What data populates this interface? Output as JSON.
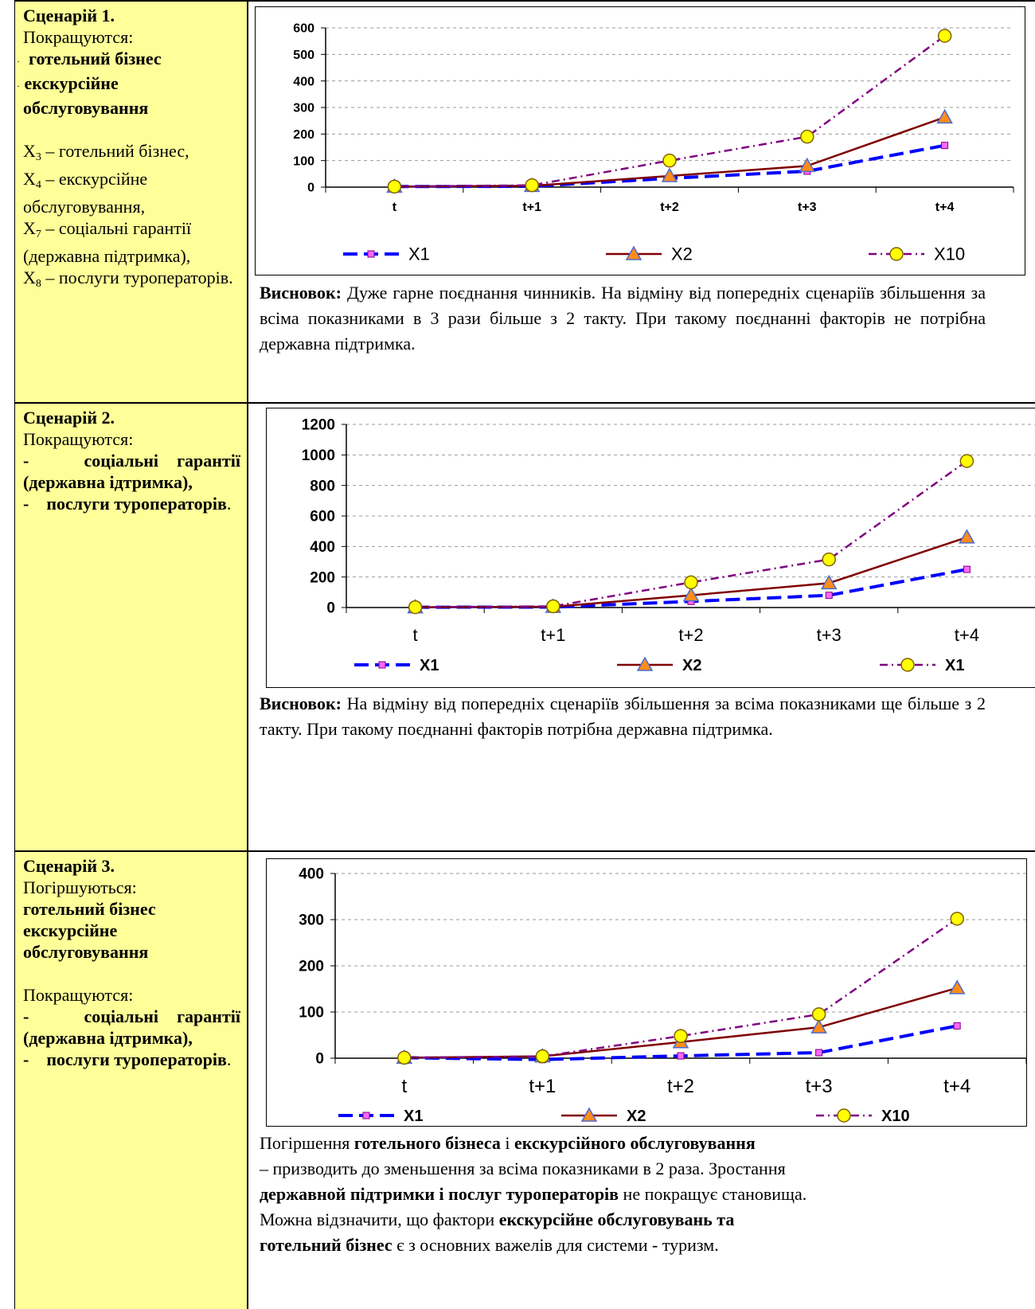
{
  "scenario1": {
    "title": "Сценарій 1.",
    "improve_label": "Покращуются:",
    "items": [
      "готельний бізнес",
      "екскурсійне обслуговування"
    ],
    "vars": [
      {
        "sym": "X",
        "sub": "3",
        "text": " – готельний бізнес,"
      },
      {
        "sym": "X",
        "sub": "4",
        "text": " – екскурсійне обслуговування,"
      },
      {
        "sym": "X",
        "sub": "7",
        "text": " – соціальні гарантії (державна підтримка),"
      },
      {
        "sym": "X",
        "sub": "8",
        "text": " – послуги туроператорів."
      }
    ],
    "conclusion_label": "Висновок:",
    "conclusion": " Дуже гарне поєднання чинників. На відміну від попередніх сценаріїв збільшення за всіма показниками в 3 рази більше з 2 такту. При такому поєднанні факторів не потрібна державна підтримка."
  },
  "scenario2": {
    "title": "Сценарій 2.",
    "improve_label": "Покращуются:",
    "item1": "соціальні гарантії (державна ідтримка),",
    "item2": "послуги туроператорів",
    "dash": "-",
    "period": ".",
    "conclusion_label": "Висновок:",
    "conclusion": " На відміну від попередніх сценаріїв збільшення за всіма показниками ще більше з 2 такту. При такому поєднанні факторів потрібна державна підтримка."
  },
  "scenario3": {
    "title": "Сценарій 3.",
    "worsen_label": "Погіршуються:",
    "worsen_items": [
      "готельний бізнес",
      "екскурсійне обслуговування"
    ],
    "improve_label": "Покращуются:",
    "item1": "соціальні гарантії (державна ідтримка),",
    "item2": "послуги туроператорів",
    "dash": "-",
    "period": ".",
    "text": {
      "p1a": "Погіршення ",
      "p1b": "готельного бізнеса",
      "p1c": " і ",
      "p1d": "екскурсійного обслуговування",
      "p2": " – призводить до зменьшення за всіма показниками в 2 раза. Зростання",
      "p3a": "державной підтримки і  послуг туроператорів",
      "p3b": " не покращує становища.",
      "p4a": "Можна відзначити, що фактори ",
      "p4b": "екскурсійне обслуговувань та",
      "p5a": "готельний бізнес",
      "p5b": "  є з основних важелів для системи - туризм."
    }
  },
  "chart_data": [
    {
      "type": "line",
      "categories": [
        "t",
        "t+1",
        "t+2",
        "t+3",
        "t+4"
      ],
      "ylim": [
        0,
        600
      ],
      "yticks": [
        0,
        100,
        200,
        300,
        400,
        500,
        600
      ],
      "grid": true,
      "legend": "bottom",
      "series": [
        {
          "name": "X1",
          "values": [
            2,
            3,
            33,
            60,
            157
          ],
          "color": "#0000ff"
        },
        {
          "name": "X2",
          "values": [
            2,
            5,
            42,
            80,
            263
          ],
          "color": "#800000"
        },
        {
          "name": "X10",
          "values": [
            2,
            7,
            100,
            190,
            570
          ],
          "color": "#800080"
        }
      ]
    },
    {
      "type": "line",
      "categories": [
        "t",
        "t+1",
        "t+2",
        "t+3",
        "t+4"
      ],
      "ylim": [
        0,
        1200
      ],
      "yticks": [
        0,
        200,
        400,
        600,
        800,
        1000,
        1200
      ],
      "grid": true,
      "legend": "bottom",
      "series": [
        {
          "name": "X1",
          "values": [
            2,
            3,
            40,
            80,
            250
          ],
          "color": "#0000ff"
        },
        {
          "name": "X2",
          "values": [
            2,
            5,
            80,
            160,
            460
          ],
          "color": "#800000"
        },
        {
          "name": "X1",
          "values": [
            2,
            8,
            165,
            315,
            960
          ],
          "color": "#800080"
        }
      ]
    },
    {
      "type": "line",
      "categories": [
        "t",
        "t+1",
        "t+2",
        "t+3",
        "t+4"
      ],
      "ylim": [
        0,
        400
      ],
      "yticks": [
        0,
        100,
        200,
        300,
        400
      ],
      "grid": true,
      "legend": "bottom",
      "series": [
        {
          "name": "X1",
          "values": [
            1,
            -3,
            5,
            12,
            70
          ],
          "color": "#0000ff"
        },
        {
          "name": "X2",
          "values": [
            1,
            4,
            35,
            67,
            152
          ],
          "color": "#800000"
        },
        {
          "name": "X10",
          "values": [
            1,
            4,
            48,
            95,
            302
          ],
          "color": "#800080"
        }
      ]
    }
  ]
}
